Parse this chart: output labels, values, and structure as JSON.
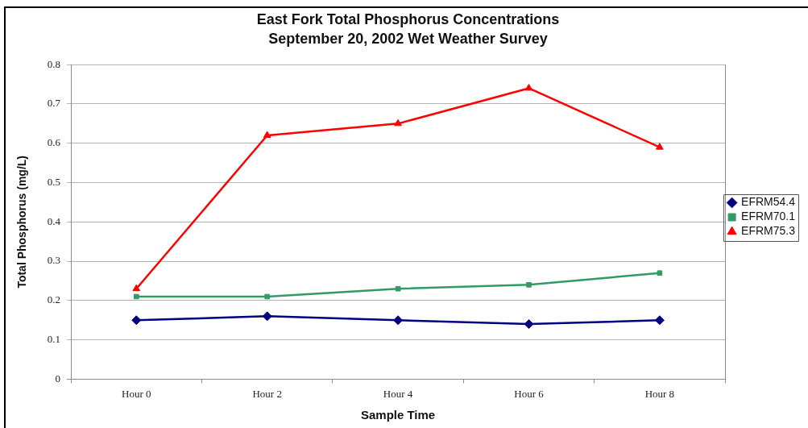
{
  "chart_data": {
    "type": "line",
    "title": "East Fork Total Phosphorus Concentrations",
    "subtitle": "September 20, 2002 Wet Weather Survey",
    "xlabel": "Sample Time",
    "ylabel": "Total Phosphorus (mg/L)",
    "categories": [
      "Hour 0",
      "Hour 2",
      "Hour 4",
      "Hour 6",
      "Hour 8"
    ],
    "series": [
      {
        "name": "EFRM54.4",
        "color": "#000080",
        "marker": "diamond",
        "values": [
          0.15,
          0.16,
          0.15,
          0.14,
          0.15
        ]
      },
      {
        "name": "EFRM70.1",
        "color": "#339966",
        "marker": "square",
        "values": [
          0.21,
          0.21,
          0.23,
          0.24,
          0.27
        ]
      },
      {
        "name": "EFRM75.3",
        "color": "#ff0000",
        "marker": "triangle",
        "values": [
          0.23,
          0.62,
          0.65,
          0.74,
          0.59
        ]
      }
    ],
    "ylim": [
      0,
      0.8
    ],
    "yticks": [
      0,
      0.1,
      0.2,
      0.3,
      0.4,
      0.5,
      0.6,
      0.7,
      0.8
    ],
    "grid": "y",
    "legend": "right"
  }
}
